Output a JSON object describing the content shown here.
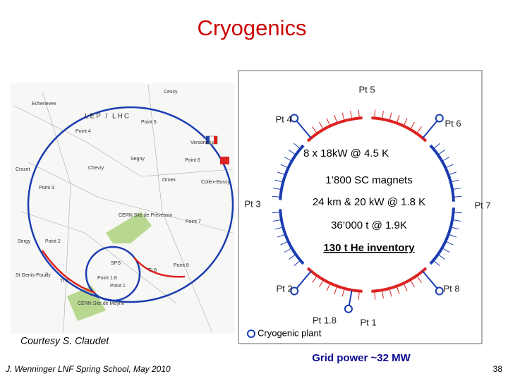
{
  "header": {
    "title": "Cryogenics"
  },
  "map": {
    "labels": [
      "LEP / LHC",
      "Point 4",
      "Point 5",
      "Point 6",
      "Point 3",
      "Point 7",
      "Point 2",
      "Point 8",
      "Point 1",
      "Point 1.8",
      "SPS",
      "CERN Site de Prévessin",
      "CERN Site de Meyrin",
      "TI 8",
      "TI 2",
      "Cessy",
      "Echenevex",
      "Versonnex",
      "Chevry",
      "Segny",
      "Ornex",
      "Crozet",
      "Sergy",
      "Collex-Bossy",
      "St Genis-Pouilly"
    ],
    "credit": "Courtesy S. Claudet"
  },
  "diagram": {
    "points": [
      "Pt 5",
      "Pt 4",
      "Pt 6",
      "Pt 3",
      "Pt 7",
      "Pt 2",
      "Pt 8",
      "Pt 1.8",
      "Pt 1"
    ],
    "facts": [
      "8 x 18kW @ 4.5 K",
      "1’800 SC magnets",
      "24 km & 20 kW @ 1.8 K",
      "36’000 t @ 1.9K",
      "130 t He inventory"
    ],
    "legend": "Cryogenic plant"
  },
  "grid_power": "Grid power ~32 MW",
  "footer": {
    "author": "J. Wenninger LNF Spring School, May 2010",
    "page": "38"
  }
}
